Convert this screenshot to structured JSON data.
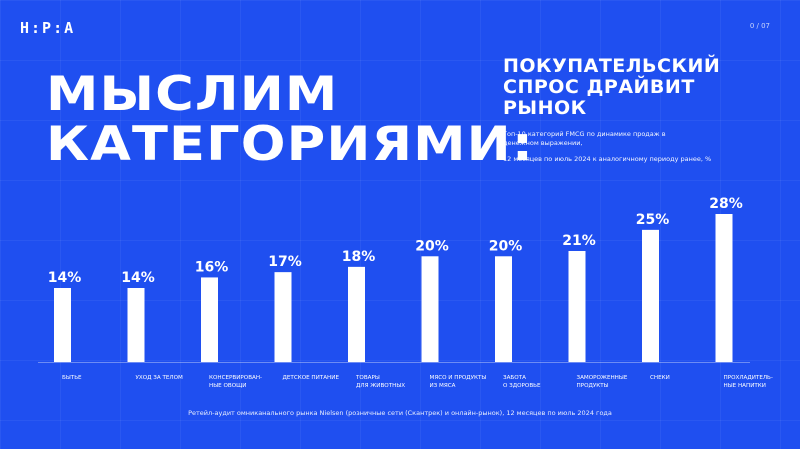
{
  "brand": {
    "logo": "Н:Р:А",
    "page": "0 / 07"
  },
  "headline": {
    "line1": "МЫСЛИМ",
    "line2": "КАТЕГОРИЯМИ:"
  },
  "subtitle": {
    "line1": "ПОКУПАТЕЛЬСКИЙ",
    "line2": "СПРОС ДРАЙВИТ",
    "line3": "РЫНОК",
    "description": "Топ-10 категорий FMCG по динамике продаж в денежном выражении,",
    "period": "12 месяцев по июль 2024 к аналогичному периоду ранее, %"
  },
  "source": "Ретейл-аудит омниканального рынка Nielsen (розничные сети (Скантрек) и онлайн-рынок), 12 месяцев по июль 2024 года",
  "colors": {
    "background": "#1f4ff0",
    "bars": "#ffffff",
    "text": "#ffffff"
  },
  "chart_data": {
    "type": "bar",
    "categories": [
      [
        "БЫТЬЕ"
      ],
      [
        "УХОД ЗА ТЕЛОМ"
      ],
      [
        "КОНСЕРВИРОВАН-",
        "НЫЕ ОВОЩИ"
      ],
      [
        "ДЕТСКОЕ ПИТАНИЕ"
      ],
      [
        "ТОВАРЫ",
        "ДЛЯ ЖИВОТНЫХ"
      ],
      [
        "МЯСО И ПРОДУКТЫ",
        "ИЗ МЯСА"
      ],
      [
        "ЗАБОТА",
        "О ЗДОРОВЬЕ"
      ],
      [
        "ЗАМОРОЖЕННЫЕ",
        "ПРОДУКТЫ"
      ],
      [
        "СНЕКИ"
      ],
      [
        "ПРОХЛАДИТЕЛЬ-",
        "НЫЕ НАПИТКИ"
      ]
    ],
    "values": [
      14,
      14,
      16,
      17,
      18,
      20,
      20,
      21,
      25,
      28
    ],
    "value_labels": [
      "14%",
      "14%",
      "16%",
      "17%",
      "18%",
      "20%",
      "20%",
      "21%",
      "25%",
      "28%"
    ],
    "ylim": [
      0,
      28
    ],
    "grid": false,
    "legend": "none"
  }
}
